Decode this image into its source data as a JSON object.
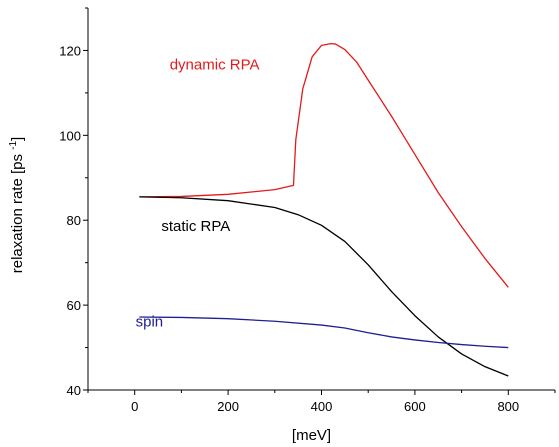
{
  "chart_data": {
    "type": "line",
    "title": "",
    "xlabel": "[meV]",
    "ylabel": "relaxation rate [ps",
    "ylabel_sup": "-1",
    "ylabel_close": "]",
    "xlim": [
      -100,
      900
    ],
    "ylim": [
      40,
      130
    ],
    "xticks": [
      0,
      200,
      400,
      600,
      800
    ],
    "yticks": [
      40,
      60,
      80,
      100,
      120
    ],
    "xtick_labels": [
      "0",
      "200",
      "400",
      "600",
      "800"
    ],
    "ytick_labels": [
      "40",
      "60",
      "80",
      "100",
      "120"
    ],
    "grid": false,
    "legend": "none",
    "series": [
      {
        "name": "dynamic RPA",
        "color": "#e31a1c",
        "x": [
          10,
          100,
          200,
          300,
          340,
          345,
          360,
          380,
          400,
          420,
          430,
          450,
          475,
          500,
          550,
          600,
          650,
          700,
          750,
          800
        ],
        "y": [
          85.5,
          85.6,
          86.1,
          87.2,
          88.2,
          99,
          111,
          118.5,
          121.2,
          121.6,
          121.5,
          120.2,
          117.3,
          113,
          104.5,
          95.5,
          86.5,
          78.5,
          71,
          64.2
        ]
      },
      {
        "name": "static RPA",
        "color": "#000000",
        "x": [
          10,
          100,
          200,
          300,
          350,
          400,
          450,
          500,
          550,
          600,
          650,
          700,
          750,
          800
        ],
        "y": [
          85.5,
          85.3,
          84.6,
          83,
          81.3,
          78.8,
          75,
          69.5,
          63.2,
          57.5,
          52.5,
          48.5,
          45.5,
          43.3
        ]
      },
      {
        "name": "spin",
        "color": "#1f1f8f",
        "x": [
          10,
          100,
          200,
          300,
          400,
          450,
          500,
          550,
          600,
          650,
          700,
          750,
          800
        ],
        "y": [
          57.2,
          57.1,
          56.8,
          56.2,
          55.3,
          54.6,
          53.5,
          52.5,
          51.8,
          51.2,
          50.7,
          50.3,
          50
        ]
      }
    ],
    "annotations": [
      {
        "text": "dynamic RPA",
        "color": "#e31a1c",
        "at_x": 75,
        "at_y": 115.5
      },
      {
        "text": "static RPA",
        "color": "#000000",
        "at_x": 57,
        "at_y": 77.5
      },
      {
        "text": "spin",
        "color": "#1f1f8f",
        "at_x": 2,
        "at_y": 55
      }
    ]
  }
}
